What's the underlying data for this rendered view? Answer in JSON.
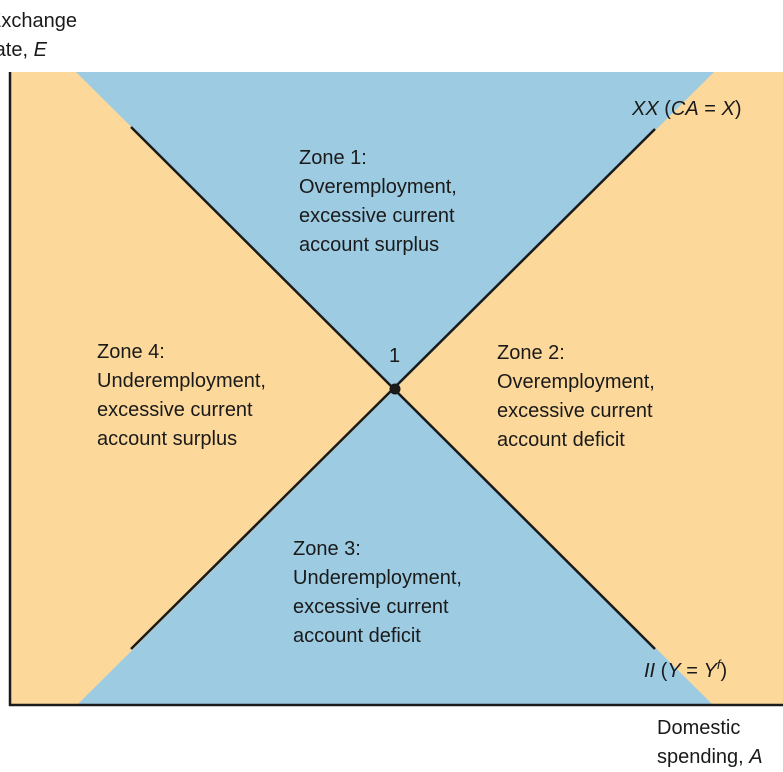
{
  "axes": {
    "y_label_line1": "Exchange",
    "y_label_line2_text": "rate, ",
    "y_label_line2_var": "E",
    "x_label_line1": "Domestic",
    "x_label_line2_text": "spending, ",
    "x_label_line2_var": "A"
  },
  "curves": {
    "xx_name": "XX",
    "xx_open": " (",
    "xx_var1": "CA",
    "xx_eq": " = ",
    "xx_var2": "X",
    "xx_close": ")",
    "ii_name": "II",
    "ii_open": " (",
    "ii_var1": "Y",
    "ii_eq": " = ",
    "ii_var2": "Y",
    "ii_sup": "f",
    "ii_close": ")"
  },
  "equilibrium": {
    "label": "1"
  },
  "zones": [
    {
      "lines": [
        "Zone 1:",
        "Overemployment,",
        "excessive current",
        "account surplus"
      ]
    },
    {
      "lines": [
        "Zone 2:",
        "Overemployment,",
        "excessive current",
        "account deficit"
      ]
    },
    {
      "lines": [
        "Zone 3:",
        "Underemployment,",
        "excessive current",
        "account deficit"
      ]
    },
    {
      "lines": [
        "Zone 4:",
        "Underemployment,",
        "excessive current",
        "account surplus"
      ]
    }
  ],
  "colors": {
    "blue_zone": "#9ccbe2",
    "orange_zone": "#fcd89a",
    "axis": "#1a1a1a",
    "curve": "#1a1a1a"
  }
}
